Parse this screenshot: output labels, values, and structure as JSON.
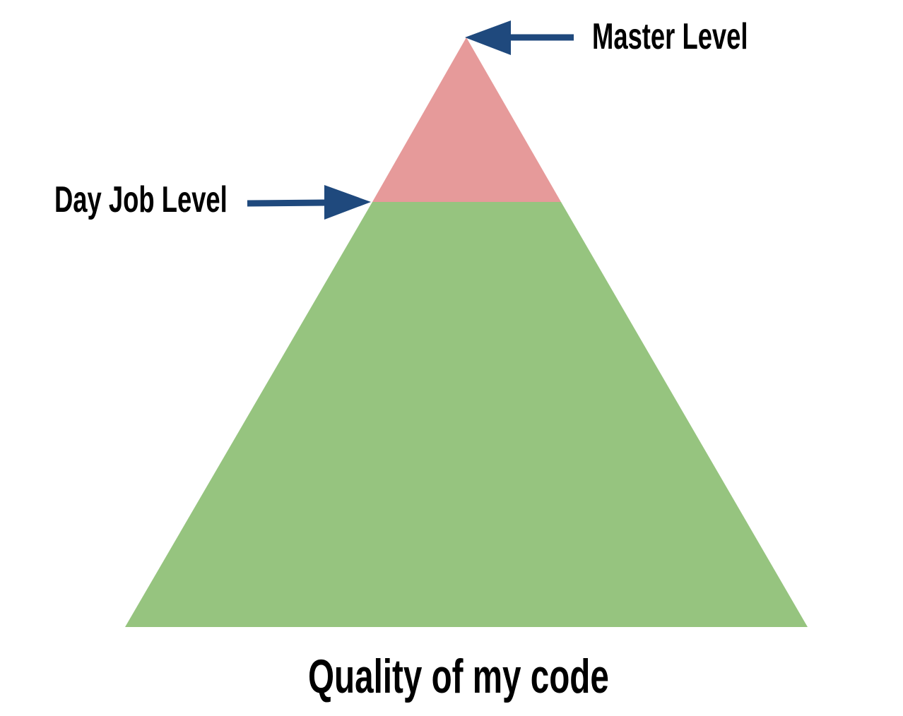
{
  "labels": {
    "master_level": "Master Level",
    "day_job_level": "Day Job Level",
    "caption": "Quality of my code"
  },
  "colors": {
    "pyramid_base": "#96c47f",
    "pyramid_top": "#e69a9a",
    "arrow": "#1f497d",
    "text": "#000000",
    "background": "#ffffff"
  }
}
